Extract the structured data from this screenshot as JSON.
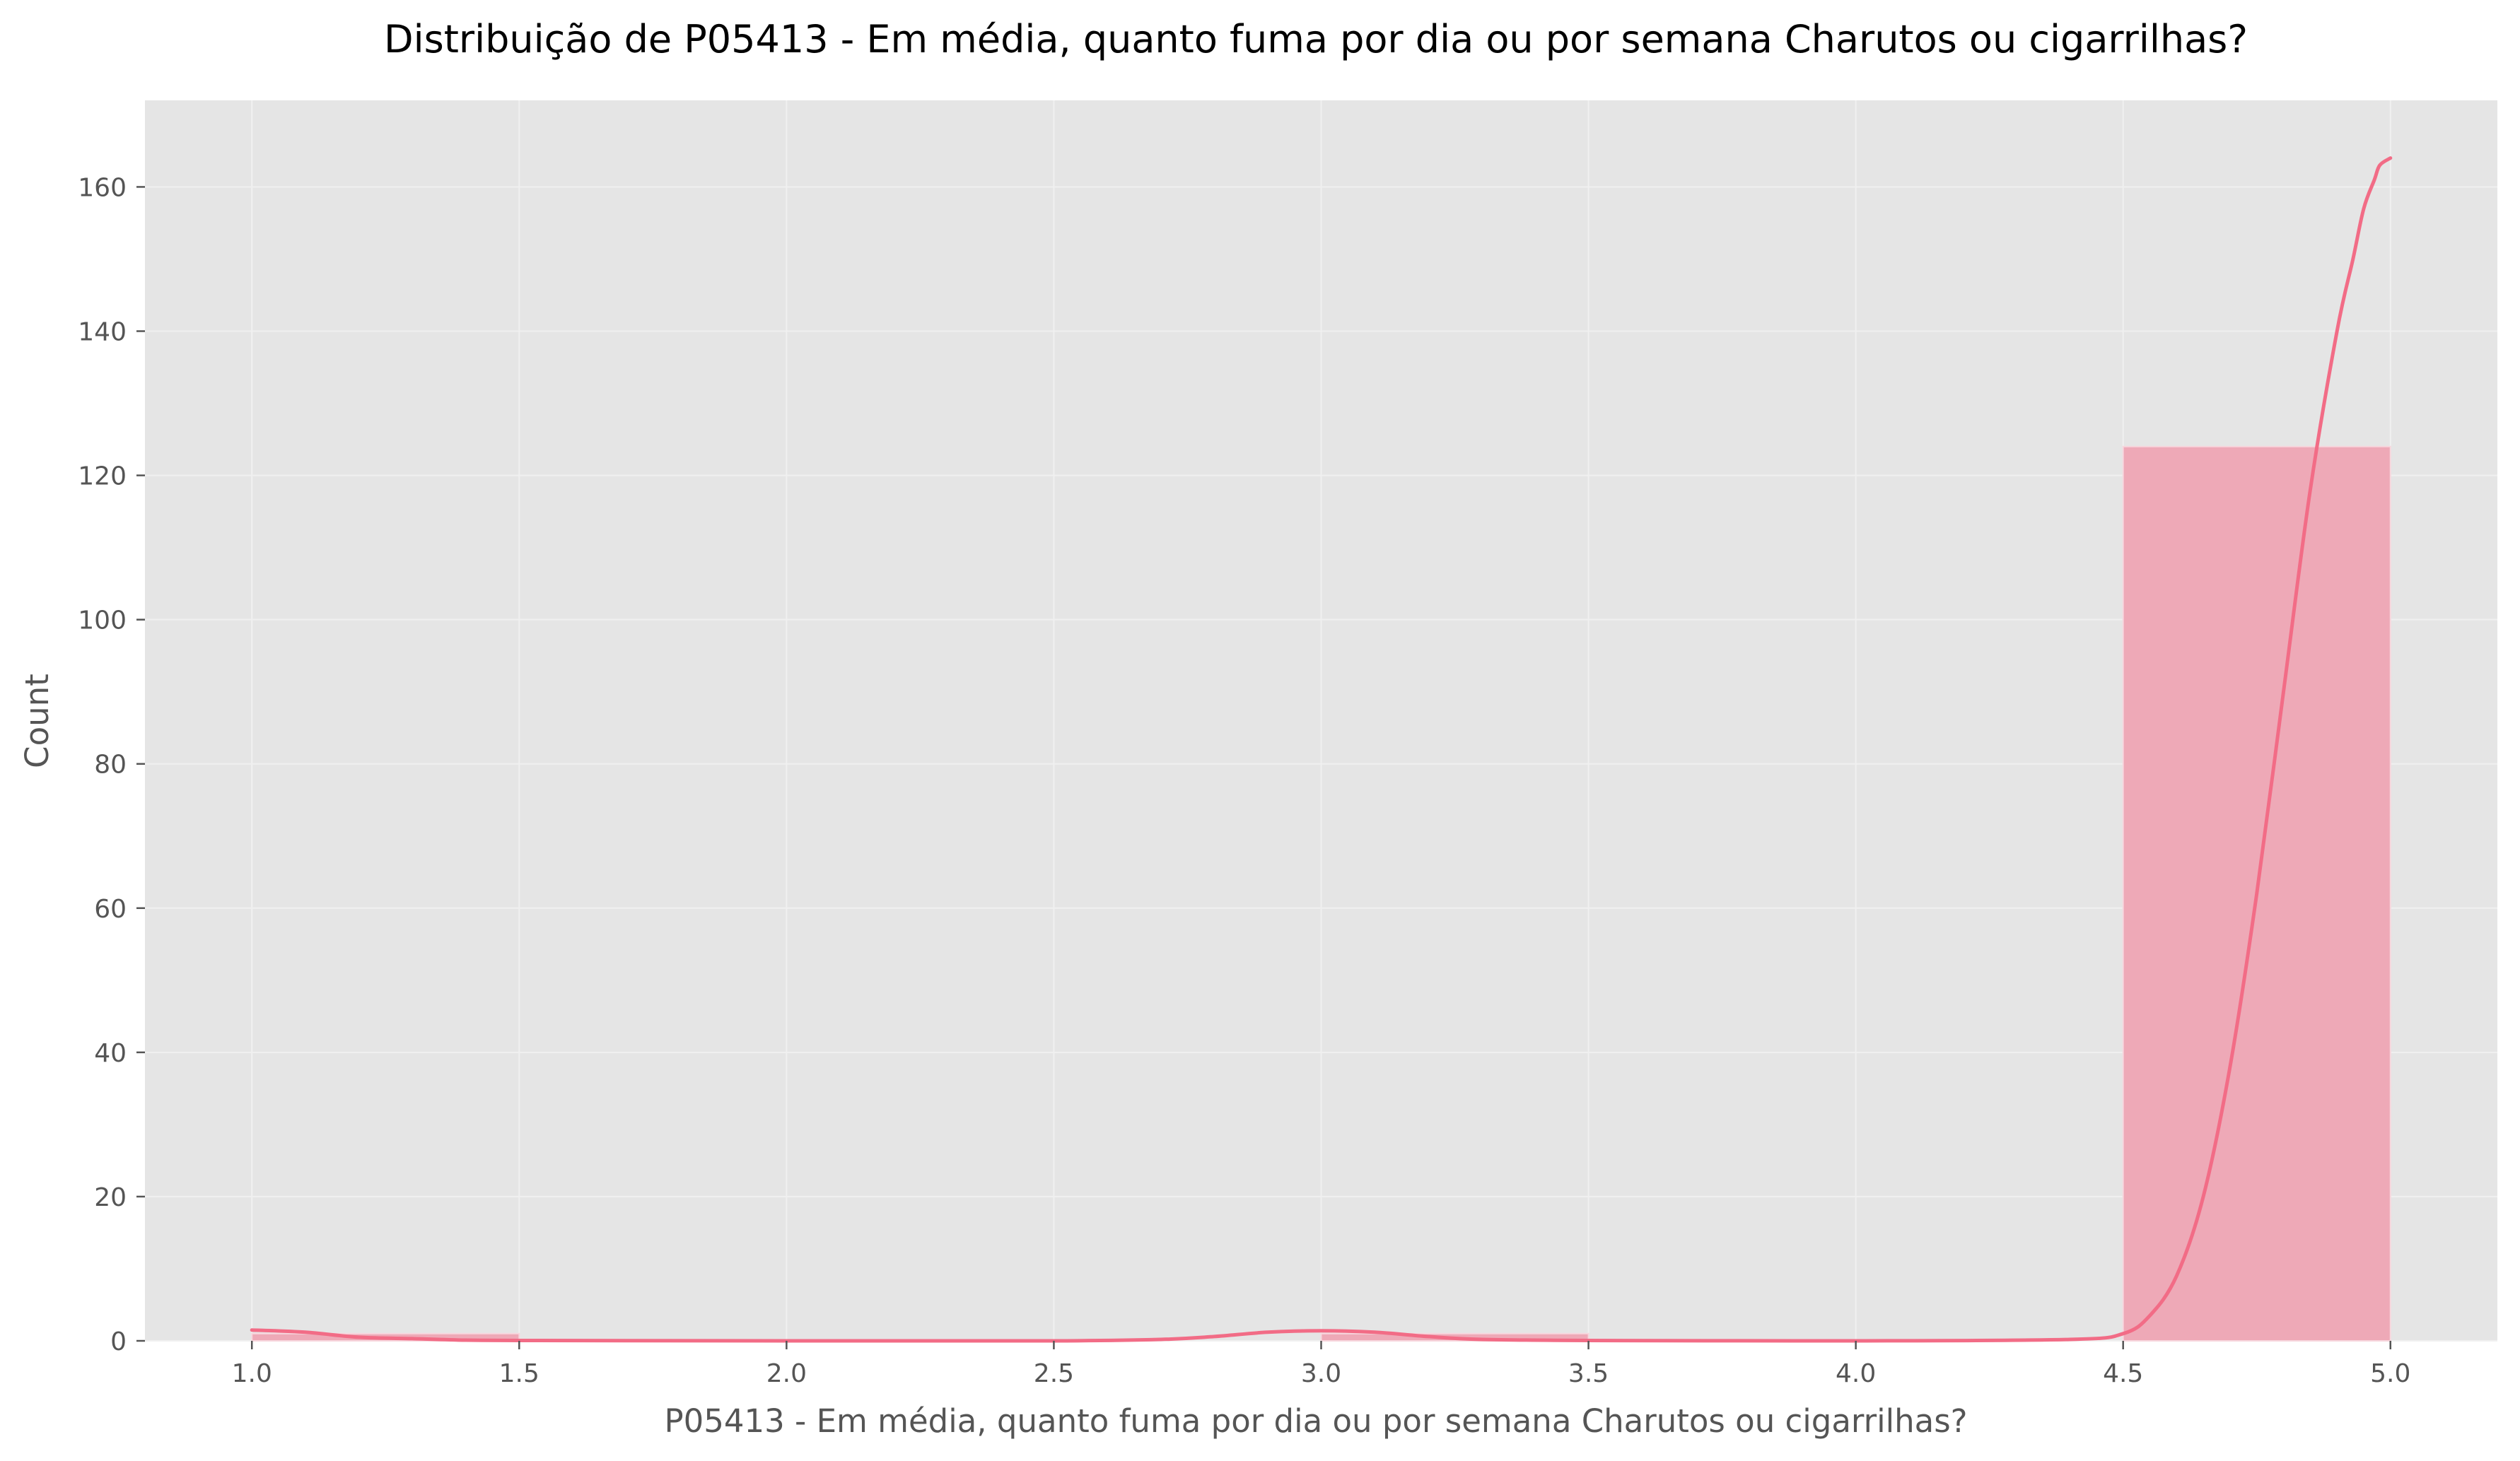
{
  "chart_data": {
    "type": "bar",
    "title": "Distribuição de P05413 - Em média, quanto fuma por dia ou por semana Charutos ou cigarrilhas?",
    "xlabel": "P05413 - Em média, quanto fuma por dia ou por semana Charutos ou cigarrilhas?",
    "ylabel": "Count",
    "xlim": [
      0.8,
      5.2
    ],
    "ylim": [
      0,
      172
    ],
    "x_ticks": [
      "1.0",
      "1.5",
      "2.0",
      "2.5",
      "3.0",
      "3.5",
      "4.0",
      "4.5",
      "5.0"
    ],
    "y_ticks": [
      "0",
      "20",
      "40",
      "60",
      "80",
      "100",
      "120",
      "140",
      "160"
    ],
    "grid": true,
    "bins": [
      {
        "start": 1.0,
        "end": 1.5,
        "count": 1
      },
      {
        "start": 1.5,
        "end": 2.0,
        "count": 0
      },
      {
        "start": 2.0,
        "end": 2.5,
        "count": 0
      },
      {
        "start": 2.5,
        "end": 3.0,
        "count": 0
      },
      {
        "start": 3.0,
        "end": 3.5,
        "count": 1
      },
      {
        "start": 3.5,
        "end": 4.0,
        "count": 0
      },
      {
        "start": 4.0,
        "end": 4.5,
        "count": 0
      },
      {
        "start": 4.5,
        "end": 5.0,
        "count": 124
      }
    ],
    "kde": {
      "name": "KDE",
      "x": [
        1.0,
        1.1,
        1.2,
        1.3,
        1.4,
        1.5,
        1.7,
        2.0,
        2.5,
        2.7,
        2.8,
        2.9,
        3.0,
        3.1,
        3.2,
        3.3,
        3.5,
        4.0,
        4.4,
        4.5,
        4.55,
        4.6,
        4.65,
        4.7,
        4.75,
        4.8,
        4.85,
        4.9,
        4.93,
        4.95,
        4.97,
        4.98,
        5.0
      ],
      "y": [
        1.5,
        1.2,
        0.5,
        0.3,
        0.1,
        0.05,
        0.02,
        0.0,
        0.0,
        0.2,
        0.6,
        1.2,
        1.4,
        1.2,
        0.6,
        0.2,
        0.05,
        0.0,
        0.2,
        1.0,
        3.5,
        9.0,
        20.0,
        38.0,
        62.0,
        90.0,
        118.0,
        140.0,
        150.0,
        157.0,
        161.0,
        163.0,
        164.0
      ]
    },
    "colors": {
      "bar_fill": "#eea9b7",
      "bar_stroke": "#f7d6dd",
      "kde_line": "#f26c86",
      "plot_background": "#e5e5e5",
      "grid": "#f0f0f0",
      "axis_text": "#555555"
    }
  }
}
